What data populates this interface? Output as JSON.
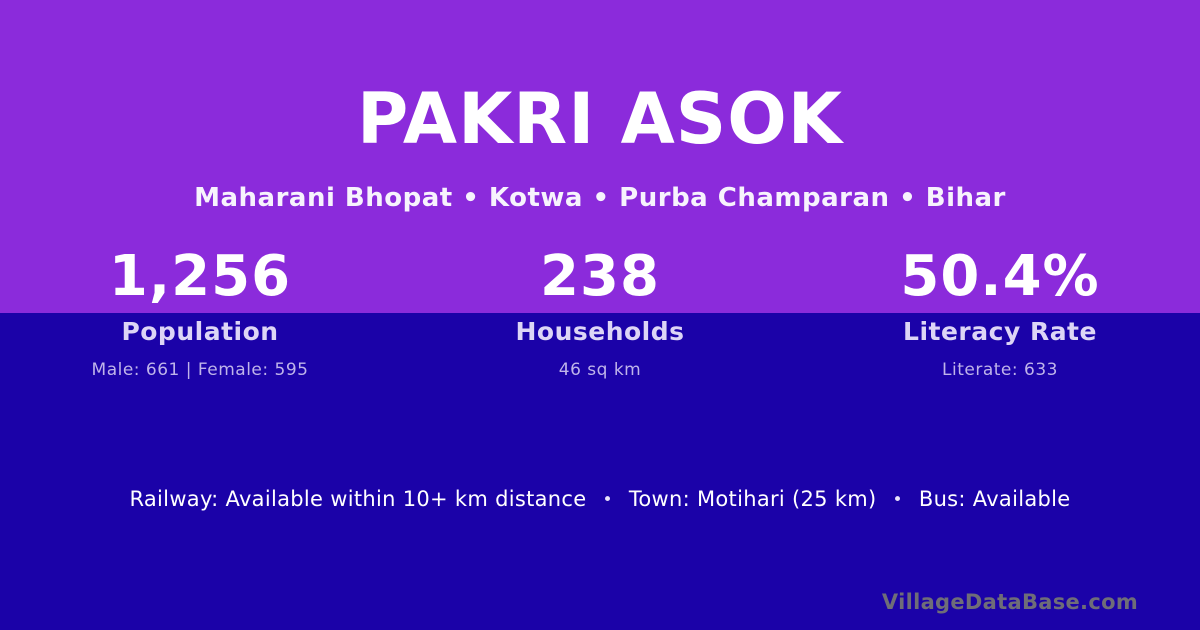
{
  "header": {
    "title": "PAKRI ASOK",
    "location": "Maharani Bhopat • Kotwa • Purba Champaran • Bihar"
  },
  "stats": [
    {
      "value": "1,256",
      "label": "Population",
      "detail": "Male: 661 | Female: 595"
    },
    {
      "value": "238",
      "label": "Households",
      "detail": "46 sq km"
    },
    {
      "value": "50.4%",
      "label": "Literacy Rate",
      "detail": "Literate: 633"
    }
  ],
  "info": {
    "separator": "•",
    "segments": [
      "Railway: Available within 10+ km distance",
      "Town: Motihari (25 km)",
      "Bus: Available"
    ]
  },
  "footer": {
    "brand": "VillageDataBase.com"
  },
  "colors": {
    "top_background": "#8b2bdb",
    "bottom_background": "#1b02a8",
    "text_primary": "#ffffff",
    "stat_label": "#ddd5f6",
    "stat_detail": "#bfb4ea",
    "brand_gray": "#6f6d78"
  }
}
